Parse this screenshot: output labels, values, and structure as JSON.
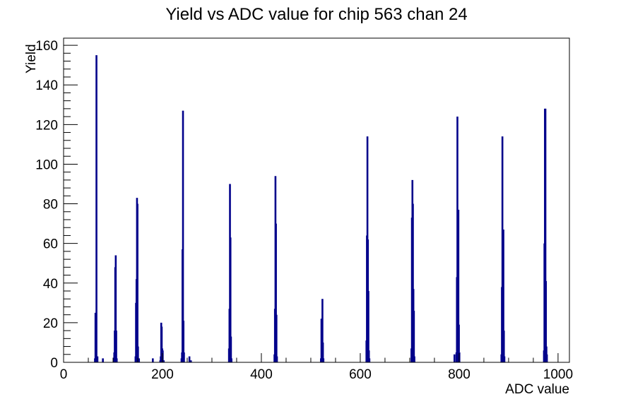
{
  "chart_data": {
    "type": "bar",
    "title": "Yield vs ADC value for chip 563 chan 24",
    "xlabel": "ADC value",
    "ylabel": "Yield",
    "xlim": [
      0,
      1023
    ],
    "ylim": [
      0,
      163.6
    ],
    "x_major_ticks": [
      0,
      200,
      400,
      600,
      800,
      1000
    ],
    "x_minor_step": 50,
    "y_major_ticks": [
      0,
      20,
      40,
      60,
      80,
      100,
      120,
      140,
      160
    ],
    "y_minor_step": 4,
    "grid": false,
    "legend": "none",
    "bar_color": "#00008b",
    "frame_color": "#000000",
    "bin_width_adc": 1,
    "bins": [
      [
        63,
        2
      ],
      [
        64,
        25
      ],
      [
        66,
        155
      ],
      [
        68,
        3
      ],
      [
        79,
        2
      ],
      [
        101,
        2
      ],
      [
        102,
        5
      ],
      [
        103,
        16
      ],
      [
        104,
        48
      ],
      [
        105,
        54
      ],
      [
        106,
        16
      ],
      [
        107,
        2
      ],
      [
        145,
        3
      ],
      [
        146,
        30
      ],
      [
        147,
        42
      ],
      [
        148,
        83
      ],
      [
        149,
        80
      ],
      [
        150,
        8
      ],
      [
        152,
        2
      ],
      [
        180,
        2
      ],
      [
        195,
        1
      ],
      [
        196,
        3
      ],
      [
        197,
        20
      ],
      [
        198,
        18
      ],
      [
        199,
        7
      ],
      [
        200,
        6
      ],
      [
        202,
        1
      ],
      [
        238,
        2
      ],
      [
        239,
        5
      ],
      [
        240,
        57
      ],
      [
        241,
        127
      ],
      [
        242,
        21
      ],
      [
        243,
        5
      ],
      [
        254,
        3
      ],
      [
        257,
        1
      ],
      [
        334,
        7
      ],
      [
        335,
        27
      ],
      [
        336,
        90
      ],
      [
        337,
        63
      ],
      [
        338,
        13
      ],
      [
        339,
        2
      ],
      [
        426,
        4
      ],
      [
        427,
        27
      ],
      [
        428,
        94
      ],
      [
        429,
        70
      ],
      [
        430,
        24
      ],
      [
        431,
        3
      ],
      [
        520,
        2
      ],
      [
        521,
        22
      ],
      [
        522,
        22
      ],
      [
        523,
        32
      ],
      [
        524,
        10
      ],
      [
        525,
        2
      ],
      [
        612,
        11
      ],
      [
        613,
        64
      ],
      [
        614,
        114
      ],
      [
        615,
        62
      ],
      [
        616,
        36
      ],
      [
        617,
        6
      ],
      [
        618,
        2
      ],
      [
        703,
        7
      ],
      [
        704,
        73
      ],
      [
        705,
        92
      ],
      [
        706,
        80
      ],
      [
        707,
        37
      ],
      [
        708,
        26
      ],
      [
        709,
        3
      ],
      [
        790,
        4
      ],
      [
        794,
        5
      ],
      [
        795,
        43
      ],
      [
        796,
        124
      ],
      [
        797,
        77
      ],
      [
        798,
        77
      ],
      [
        799,
        19
      ],
      [
        800,
        5
      ],
      [
        885,
        4
      ],
      [
        886,
        38
      ],
      [
        887,
        114
      ],
      [
        888,
        67
      ],
      [
        889,
        67
      ],
      [
        890,
        16
      ],
      [
        891,
        3
      ],
      [
        971,
        6
      ],
      [
        972,
        60
      ],
      [
        973,
        128
      ],
      [
        974,
        128
      ],
      [
        975,
        41
      ],
      [
        976,
        8
      ],
      [
        977,
        4
      ]
    ]
  }
}
